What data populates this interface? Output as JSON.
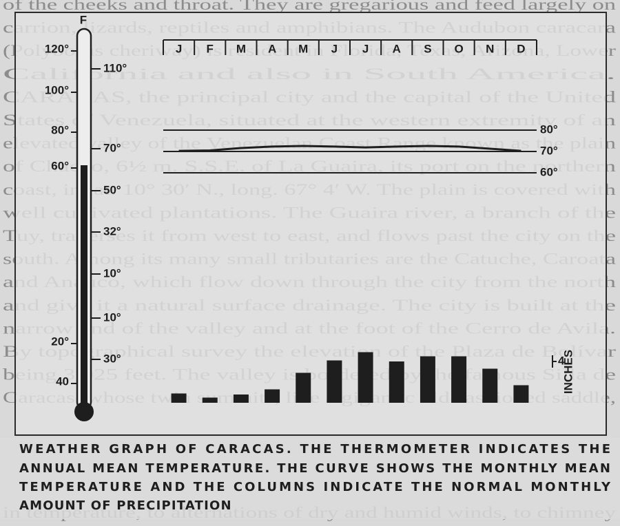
{
  "page_text": [
    "of the cheeks and throat. They are gregarious and feed largely on",
    "carrion, lizards, reptiles and amphibians. The Audubon caracara",
    "(Polyborus cheriway) is resident in Florida, Texas, Arizona, Lower",
    "California and also in South America.",
    "CARÁCAS, the principal city and the capital of the United",
    "States of Venezuela, situated at the western extremity of an",
    "elevated valley of the Venezuelan Coast Range known as the plain",
    "of Chacao, 6½ m. S.S.E. of La Guaira, its port on the northern",
    "coast, in lat. 10° 30′ N., long. 67° 4′ W. The plain is covered with",
    "well cultivated plantations. The Guaira river, a branch of the",
    "Tuy, traverses it from west to east, and flows past the city on the",
    "south. Among its many small tributaries are the Catuche, Caroata",
    "and Anauco, which flow down through the city from the north",
    "and give it a natural surface drainage. The city is built at the",
    "narrow end of the valley and at the foot of the Cerro de Avila.",
    "By topographical survey the elevation of the Plaza de Bolívar",
    "being 3,025 feet. The valley is bordered by the famous Silla de",
    "Caracas, whose twin summits, like a gigantic old-fashioned saddle,",
    "in temperature, to alternations of dry and humid winds, to chimney"
  ],
  "thermometer": {
    "unit": "F",
    "left_labels": [
      "120°",
      "100°",
      "80°",
      "60°",
      "20°",
      "40"
    ],
    "right_labels": [
      "110°",
      "70°",
      "50°",
      "32°",
      "10°",
      "10°",
      "30°"
    ]
  },
  "chart_data": {
    "type": "bar",
    "caption": [
      "WEATHER GRAPH OF CARACAS. THE THERMOMETER INDICATES THE",
      "ANNUAL MEAN TEMPERATURE. THE CURVE SHOWS THE MONTHLY MEAN",
      "TEMPERATURE AND THE COLUMNS INDICATE THE NORMAL MONTHLY",
      "AMOUNT OF PRECIPITATION"
    ],
    "categories": [
      "J",
      "F",
      "M",
      "A",
      "M",
      "J",
      "J",
      "A",
      "S",
      "O",
      "N",
      "D"
    ],
    "series": [
      {
        "color": "#1e1e1e",
        "values": [
          0.9,
          0.5,
          0.8,
          1.3,
          2.9,
          4.1,
          4.9,
          4.0,
          4.5,
          4.5,
          3.3,
          1.7
        ]
      },
      {
        "type": "line",
        "axis": "y2",
        "color": "#1e1e1e",
        "values": [
          70.3,
          70.5,
          71.6,
          72.3,
          72.6,
          72.3,
          71.9,
          72.3,
          72.6,
          72.3,
          71.3,
          70.3
        ]
      }
    ],
    "ylabel": "INCHES",
    "ylim": [
      0,
      4
    ],
    "yticks": [
      4
    ],
    "y2lim": [
      60,
      80
    ],
    "y2ticks": [
      {
        "value": 80,
        "label": "80°"
      },
      {
        "value": 70,
        "label": "70°"
      },
      {
        "value": 60,
        "label": "60°"
      }
    ],
    "grid": true
  }
}
